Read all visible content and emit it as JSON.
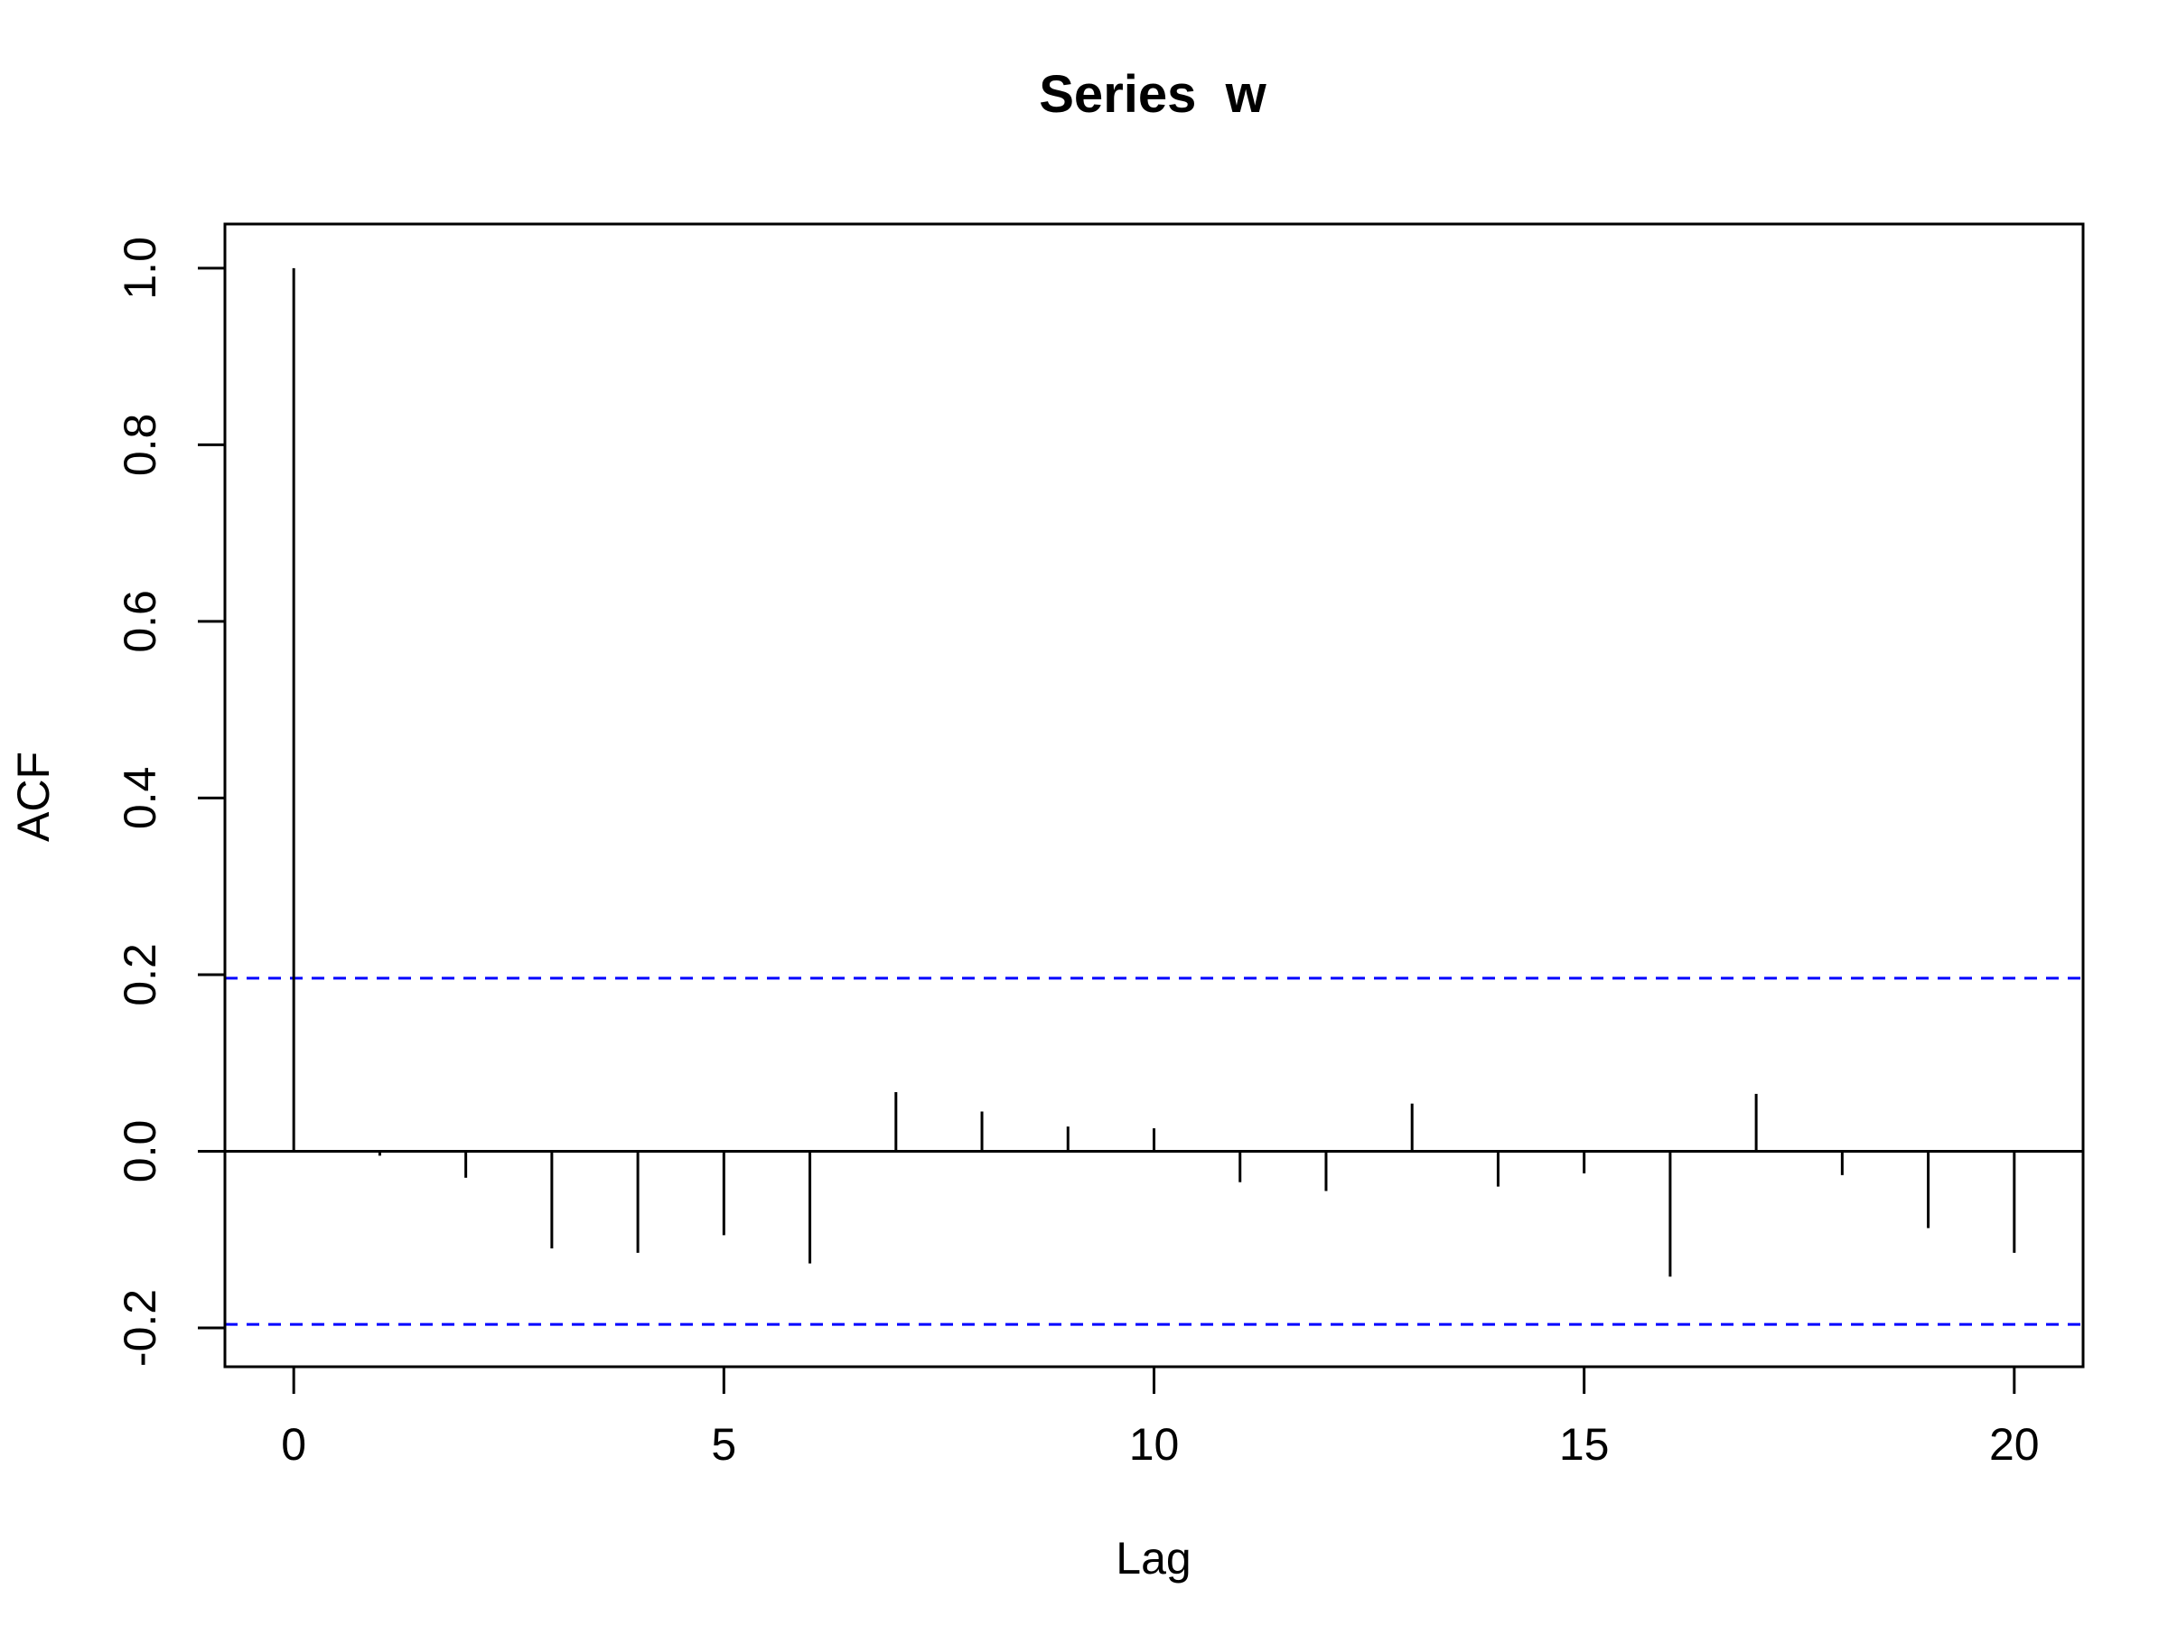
{
  "chart_data": {
    "type": "bar",
    "title": "Series  w",
    "xlabel": "Lag",
    "ylabel": "ACF",
    "x": [
      0,
      1,
      2,
      3,
      4,
      5,
      6,
      7,
      8,
      9,
      10,
      11,
      12,
      13,
      14,
      15,
      16,
      17,
      18,
      19,
      20
    ],
    "values": [
      1.0,
      -0.005,
      -0.03,
      -0.11,
      -0.115,
      -0.095,
      -0.127,
      0.067,
      0.045,
      0.028,
      0.026,
      -0.035,
      -0.045,
      0.054,
      -0.04,
      -0.025,
      -0.142,
      0.065,
      -0.027,
      -0.087,
      -0.115
    ],
    "confidence_bound": 0.196,
    "xlim": [
      -0.8,
      20.8
    ],
    "ylim": [
      -0.244,
      1.05
    ],
    "x_ticks": [
      0,
      5,
      10,
      15,
      20
    ],
    "y_ticks": [
      -0.2,
      0.0,
      0.2,
      0.4,
      0.6,
      0.8,
      1.0
    ],
    "x_tick_labels": [
      "0",
      "5",
      "10",
      "15",
      "20"
    ],
    "y_tick_labels": [
      "-0.2",
      "0.0",
      "0.2",
      "0.4",
      "0.6",
      "0.8",
      "1.0"
    ],
    "colors": {
      "bars": "#000000",
      "confidence": "#0000ff"
    },
    "grid": false,
    "legend": false
  }
}
